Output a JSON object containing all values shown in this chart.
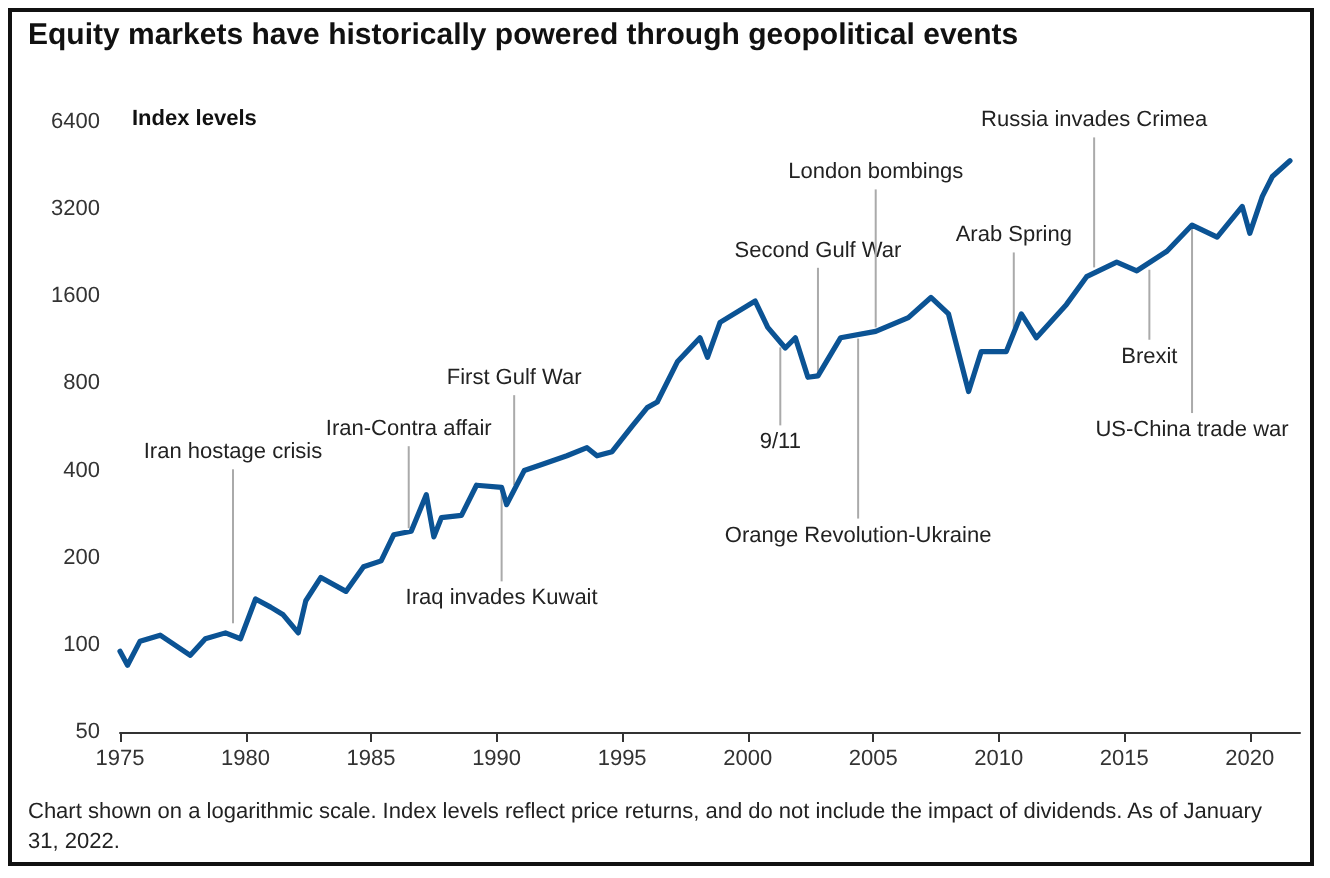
{
  "chart_data": {
    "type": "line",
    "title": "Equity markets have historically powered through geopolitical events",
    "ylabel": "Index levels",
    "log": "y",
    "x": [
      1975.0,
      1975.3,
      1975.8,
      1976.6,
      1977.8,
      1978.4,
      1979.2,
      1979.8,
      1980.4,
      1981.0,
      1981.5,
      1982.1,
      1982.4,
      1983.0,
      1984.0,
      1984.7,
      1985.4,
      1985.9,
      1986.6,
      1987.2,
      1987.5,
      1987.8,
      1988.6,
      1989.2,
      1990.2,
      1990.4,
      1991.1,
      1991.8,
      1992.8,
      1993.6,
      1994.0,
      1994.6,
      1995.4,
      1996.0,
      1996.4,
      1997.2,
      1998.1,
      1998.4,
      1998.9,
      2000.3,
      2000.8,
      2001.5,
      2001.9,
      2002.4,
      2002.8,
      2003.7,
      2005.1,
      2006.4,
      2007.3,
      2008.0,
      2008.8,
      2009.3,
      2010.3,
      2010.9,
      2011.5,
      2012.7,
      2013.5,
      2014.7,
      2015.5,
      2016.7,
      2017.7,
      2018.7,
      2019.7,
      2020.0,
      2020.5,
      2020.9,
      2021.6
    ],
    "series": [
      {
        "color": "#0b5394",
        "values": [
          95,
          85,
          103,
          108,
          92,
          105,
          110,
          105,
          144,
          135,
          127,
          110,
          142,
          171,
          153,
          186,
          195,
          240,
          247,
          330,
          236,
          275,
          280,
          356,
          350,
          305,
          400,
          420,
          450,
          480,
          450,
          465,
          570,
          660,
          690,
          950,
          1150,
          985,
          1300,
          1540,
          1250,
          1060,
          1150,
          840,
          850,
          1150,
          1210,
          1350,
          1585,
          1390,
          750,
          1030,
          1030,
          1390,
          1150,
          1500,
          1870,
          2100,
          1960,
          2290,
          2820,
          2560,
          3270,
          2640,
          3540,
          4150,
          4700
        ]
      }
    ],
    "xlim": [
      1975,
      2022
    ],
    "xticks": [
      1975,
      1980,
      1985,
      1990,
      1995,
      2000,
      2005,
      2010,
      2015,
      2020
    ],
    "ylim": [
      50,
      6400
    ],
    "yticks": [
      50,
      100,
      200,
      400,
      800,
      1600,
      3200,
      6400
    ],
    "marker": "none",
    "line_style": "solid",
    "annotations": [
      {
        "text": "Iran hostage crisis",
        "x": 1979.5,
        "y": 115
      },
      {
        "text": "Iran-Contra affair",
        "x": 1986.5,
        "y": 245
      },
      {
        "text": "First Gulf War",
        "x": 1990.7,
        "y": 345
      },
      {
        "text": "Iraq invades Kuwait",
        "x": 1990.2,
        "y": 350
      },
      {
        "text": "Second Gulf War",
        "x": 2002.8,
        "y": 850
      },
      {
        "text": "9/11",
        "x": 2001.3,
        "y": 1100
      },
      {
        "text": "London bombings",
        "x": 2005.1,
        "y": 1210
      },
      {
        "text": "Orange Revolution-Ukraine",
        "x": 2004.4,
        "y": 1180
      },
      {
        "text": "Arab Spring",
        "x": 2010.6,
        "y": 1200
      },
      {
        "text": "Russia invades Crimea",
        "x": 2013.8,
        "y": 1950
      },
      {
        "text": "Brexit",
        "x": 2016.0,
        "y": 2040
      },
      {
        "text": "US-China trade war",
        "x": 2017.7,
        "y": 2820
      },
      "Chart shown on a logarithmic scale. Index levels reflect price returns, and do not include the impact of dividends. As of January 31, 2022."
    ]
  }
}
